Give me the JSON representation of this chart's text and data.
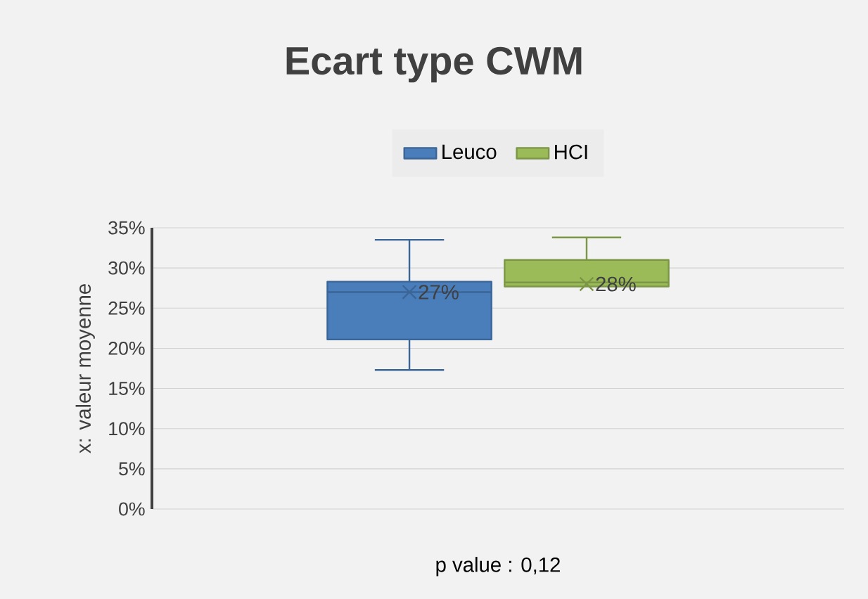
{
  "chart_data": {
    "type": "box",
    "title": "Ecart type CWM",
    "xlabel": "p value : 0,12",
    "ylabel": "x: valeur moyenne",
    "categories": [
      null
    ],
    "series": [
      {
        "name": "Leuco",
        "color": "#4a7ebb",
        "boxes": [
          {
            "low": 17.3,
            "q1": 21.1,
            "median": 27.0,
            "q3": 28.3,
            "high": 33.5,
            "mean": 27
          }
        ],
        "value_labels": [
          "27%"
        ]
      },
      {
        "name": "HCI",
        "color": "#9bbb59",
        "boxes": [
          {
            "low": 27.7,
            "q1": 27.7,
            "median": 28.2,
            "q3": 31.0,
            "high": 33.8,
            "mean": 28
          }
        ],
        "value_labels": [
          "28%"
        ]
      }
    ],
    "ylim": [
      0,
      35
    ],
    "yticks": [
      {
        "value": 0,
        "label": "0%"
      },
      {
        "value": 5,
        "label": "5%"
      },
      {
        "value": 10,
        "label": "10%"
      },
      {
        "value": 15,
        "label": "15%"
      },
      {
        "value": 20,
        "label": "20%"
      },
      {
        "value": 25,
        "label": "25%"
      },
      {
        "value": 30,
        "label": "30%"
      },
      {
        "value": 35,
        "label": "35%"
      }
    ],
    "grid": "y",
    "legend": "top"
  }
}
